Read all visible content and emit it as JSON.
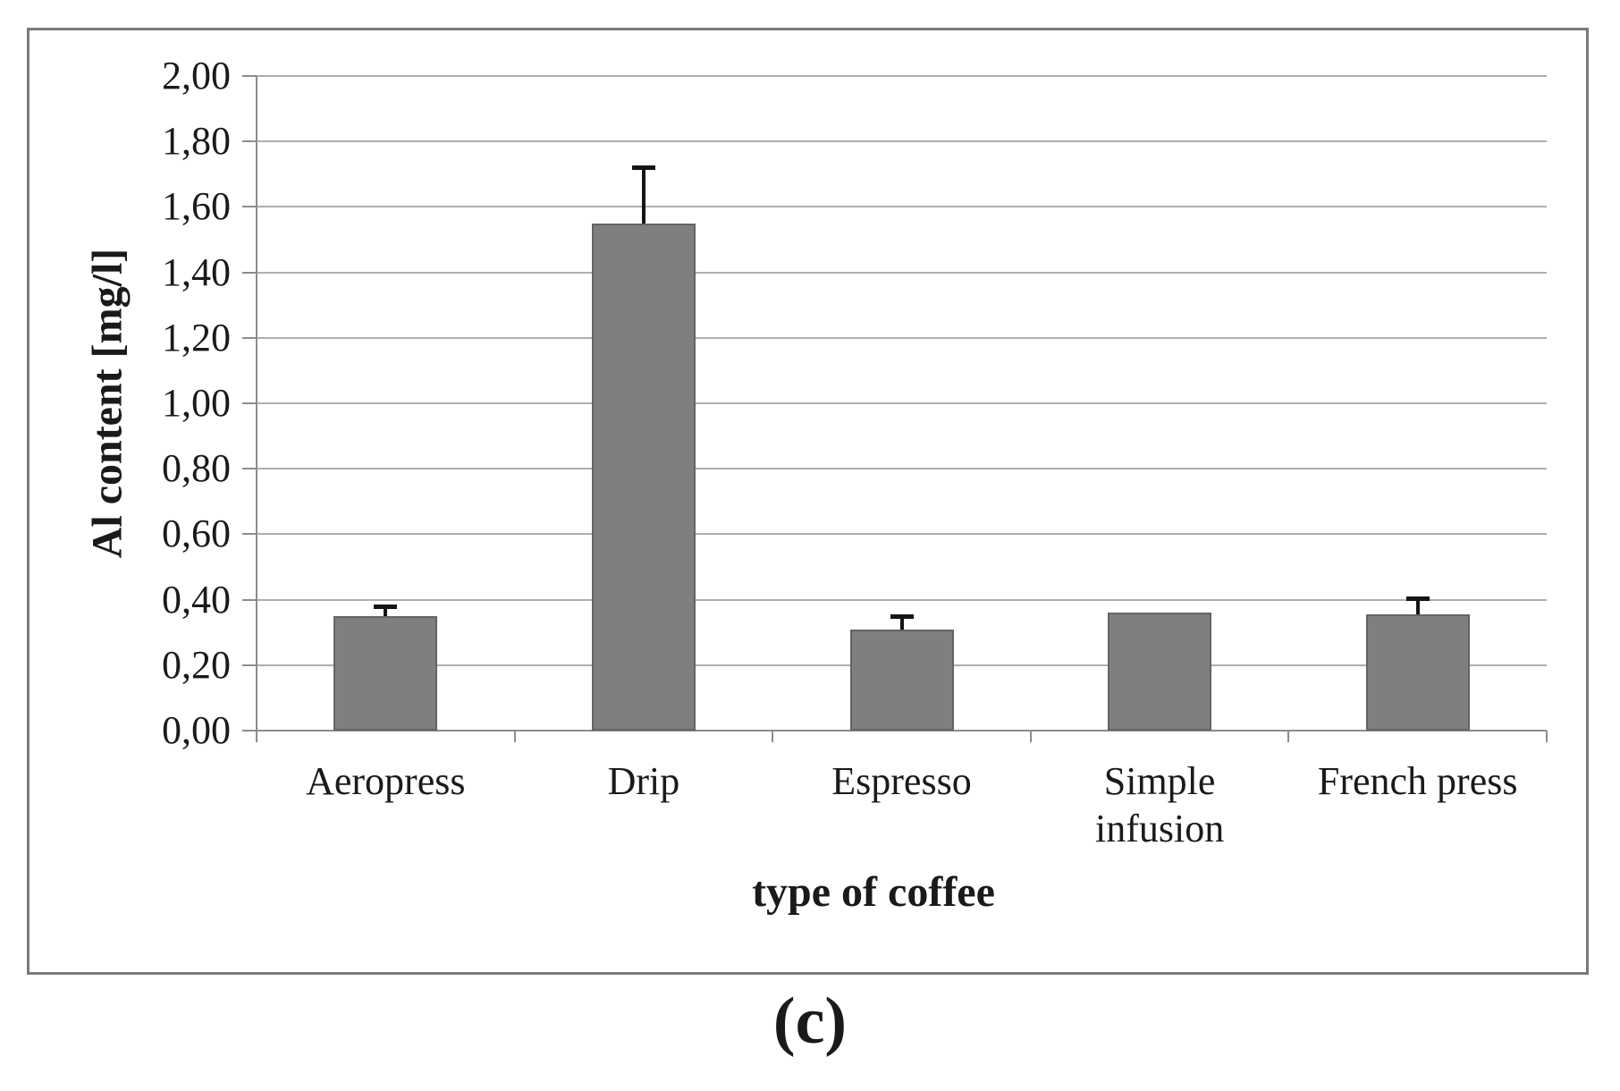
{
  "caption": {
    "text": "(c)"
  },
  "chart_data": {
    "type": "bar",
    "title": "",
    "xlabel": "type of coffee",
    "ylabel": "Al content [mg/l]",
    "categories": [
      "Aeropress",
      "Drip",
      "Espresso",
      "Simple infusion",
      "French press"
    ],
    "category_lines": [
      [
        "Aeropress"
      ],
      [
        "Drip"
      ],
      [
        "Espresso"
      ],
      [
        "Simple",
        "infusion"
      ],
      [
        "French press"
      ]
    ],
    "values": [
      0.35,
      1.55,
      0.31,
      0.36,
      0.355
    ],
    "errors_plus": [
      0.03,
      0.17,
      0.04,
      0,
      0.05
    ],
    "ylim": [
      0,
      2.0
    ],
    "ytick_step": 0.2,
    "ytick_values": [
      0.0,
      0.2,
      0.4,
      0.6,
      0.8,
      1.0,
      1.2,
      1.4,
      1.6,
      1.8,
      2.0
    ],
    "ytick_labels": [
      "0,00",
      "0,20",
      "0,40",
      "0,60",
      "0,80",
      "1,00",
      "1,20",
      "1,40",
      "1,60",
      "1,80",
      "2,00"
    ],
    "decimal_separator": ",",
    "grid": true,
    "legend": null,
    "colors": {
      "bar_fill": "#7f7f7f",
      "bar_border": "#646464",
      "gridline": "#aeaeae",
      "axis": "#8c8c8c",
      "error_bar": "#151515",
      "frame_border": "#7a7a7a",
      "text": "#1a1a1a",
      "background": "#ffffff"
    }
  }
}
